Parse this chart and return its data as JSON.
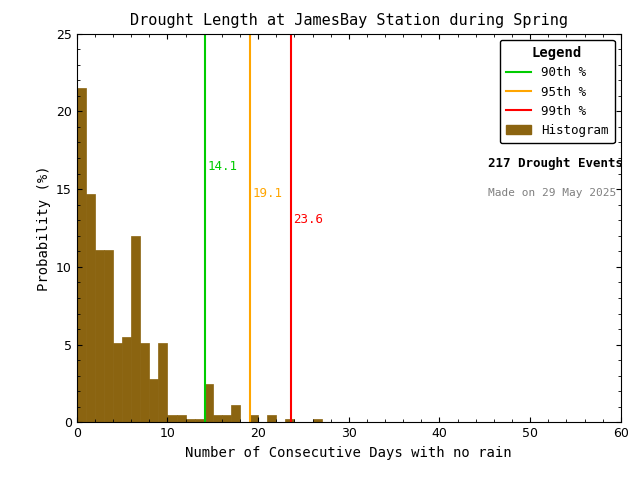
{
  "title": "Drought Length at JamesBay Station during Spring",
  "xlabel": "Number of Consecutive Days with no rain",
  "ylabel": "Probability (%)",
  "bar_color": "#8B6410",
  "bar_edgecolor": "#8B6410",
  "xlim": [
    0,
    60
  ],
  "ylim": [
    0,
    25
  ],
  "yticks": [
    0,
    5,
    10,
    15,
    20,
    25
  ],
  "xticks": [
    0,
    10,
    20,
    30,
    40,
    50,
    60
  ],
  "bar_data": [
    [
      0,
      21.5
    ],
    [
      1,
      14.7
    ],
    [
      2,
      11.1
    ],
    [
      3,
      11.1
    ],
    [
      4,
      5.1
    ],
    [
      5,
      5.5
    ],
    [
      6,
      12.0
    ],
    [
      7,
      5.1
    ],
    [
      8,
      2.8
    ],
    [
      9,
      5.1
    ],
    [
      10,
      0.5
    ],
    [
      11,
      0.5
    ],
    [
      12,
      0.25
    ],
    [
      13,
      0.25
    ],
    [
      14,
      2.5
    ],
    [
      15,
      0.5
    ],
    [
      16,
      0.5
    ],
    [
      17,
      1.1
    ],
    [
      18,
      0.0
    ],
    [
      19,
      0.5
    ],
    [
      20,
      0.0
    ],
    [
      21,
      0.5
    ],
    [
      22,
      0.0
    ],
    [
      23,
      0.25
    ],
    [
      24,
      0.0
    ],
    [
      25,
      0.0
    ],
    [
      26,
      0.25
    ]
  ],
  "percentile_90": 14.1,
  "percentile_95": 19.1,
  "percentile_99": 23.6,
  "percentile_90_color": "#00CC00",
  "percentile_95_color": "#FFA500",
  "percentile_99_color": "#FF0000",
  "n_events": 217,
  "made_on": "29 May 2025",
  "legend_title": "Legend",
  "background_color": "#ffffff",
  "ann_90_y": 16.2,
  "ann_95_y": 14.5,
  "ann_99_y": 12.8
}
